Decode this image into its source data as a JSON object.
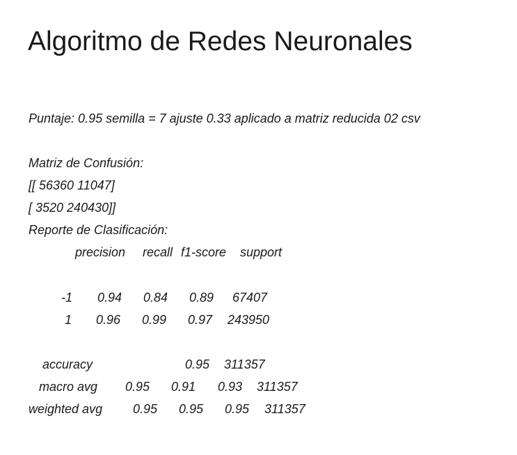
{
  "title": "Algoritmo de Redes Neuronales",
  "score_line": "Puntaje: 0.95 semilla = 7 ajuste 0.33 aplicado a matriz reducida 02 csv",
  "confusion_label": "Matriz de Confusión:",
  "confusion_rows": [
    "[[ 56360  11047]",
    "[  3520 240430]]"
  ],
  "report_label": "Reporte de Clasificación:",
  "report_headers": [
    "precision",
    "recall",
    "f1-score",
    "support"
  ],
  "class_rows": [
    {
      "label": "-1",
      "precision": "0.94",
      "recall": "0.84",
      "f1": "0.89",
      "support": "67407"
    },
    {
      "label": "1",
      "precision": "0.96",
      "recall": "0.99",
      "f1": "0.97",
      "support": "243950"
    }
  ],
  "accuracy_row": {
    "label": "accuracy",
    "f1": "0.95",
    "support": "311357"
  },
  "avg_rows": [
    {
      "label": "macro avg",
      "precision": "0.95",
      "recall": "0.91",
      "f1": "0.93",
      "support": "311357"
    },
    {
      "label": "weighted avg",
      "precision": "0.95",
      "recall": "0.95",
      "f1": "0.95",
      "support": "311357"
    }
  ]
}
